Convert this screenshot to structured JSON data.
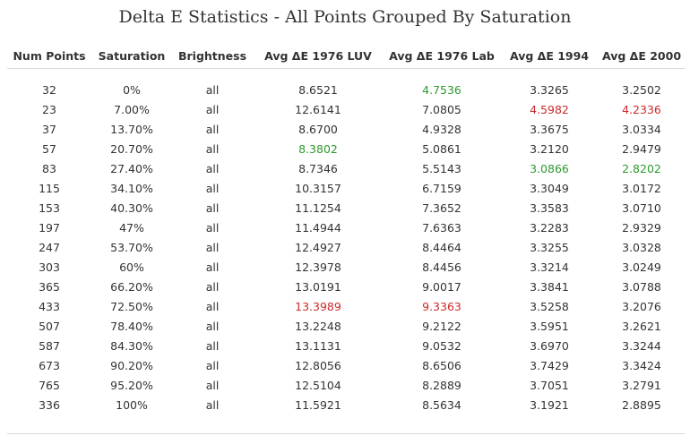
{
  "title": "Delta E Statistics - All Points Grouped By Saturation",
  "colors": {
    "best": "#2e9a2e",
    "worst": "#cc2a2a",
    "text": "#333333"
  },
  "columns": [
    "Num Points",
    "Saturation",
    "Brightness",
    "Avg ΔE 1976 LUV",
    "Avg ΔE 1976 Lab",
    "Avg ΔE 1994",
    "Avg ΔE 2000"
  ],
  "rows": [
    [
      "32",
      "0%",
      "all",
      "8.6521",
      "4.7536",
      "3.3265",
      "3.2502"
    ],
    [
      "23",
      "7.00%",
      "all",
      "12.6141",
      "7.0805",
      "4.5982",
      "4.2336"
    ],
    [
      "37",
      "13.70%",
      "all",
      "8.6700",
      "4.9328",
      "3.3675",
      "3.0334"
    ],
    [
      "57",
      "20.70%",
      "all",
      "8.3802",
      "5.0861",
      "3.2120",
      "2.9479"
    ],
    [
      "83",
      "27.40%",
      "all",
      "8.7346",
      "5.5143",
      "3.0866",
      "2.8202"
    ],
    [
      "115",
      "34.10%",
      "all",
      "10.3157",
      "6.7159",
      "3.3049",
      "3.0172"
    ],
    [
      "153",
      "40.30%",
      "all",
      "11.1254",
      "7.3652",
      "3.3583",
      "3.0710"
    ],
    [
      "197",
      "47%",
      "all",
      "11.4944",
      "7.6363",
      "3.2283",
      "2.9329"
    ],
    [
      "247",
      "53.70%",
      "all",
      "12.4927",
      "8.4464",
      "3.3255",
      "3.0328"
    ],
    [
      "303",
      "60%",
      "all",
      "12.3978",
      "8.4456",
      "3.3214",
      "3.0249"
    ],
    [
      "365",
      "66.20%",
      "all",
      "13.0191",
      "9.0017",
      "3.3841",
      "3.0788"
    ],
    [
      "433",
      "72.50%",
      "all",
      "13.3989",
      "9.3363",
      "3.5258",
      "3.2076"
    ],
    [
      "507",
      "78.40%",
      "all",
      "13.2248",
      "9.2122",
      "3.5951",
      "3.2621"
    ],
    [
      "587",
      "84.30%",
      "all",
      "13.1131",
      "9.0532",
      "3.6970",
      "3.3244"
    ],
    [
      "673",
      "90.20%",
      "all",
      "12.8056",
      "8.6506",
      "3.7429",
      "3.3424"
    ],
    [
      "765",
      "95.20%",
      "all",
      "12.5104",
      "8.2889",
      "3.7051",
      "3.2791"
    ],
    [
      "336",
      "100%",
      "all",
      "11.5921",
      "8.5634",
      "3.1921",
      "2.8895"
    ]
  ],
  "highlights": {
    "best": [
      [
        0,
        4
      ],
      [
        3,
        3
      ],
      [
        4,
        5
      ],
      [
        4,
        6
      ]
    ],
    "worst": [
      [
        1,
        5
      ],
      [
        1,
        6
      ],
      [
        11,
        3
      ],
      [
        11,
        4
      ]
    ]
  }
}
